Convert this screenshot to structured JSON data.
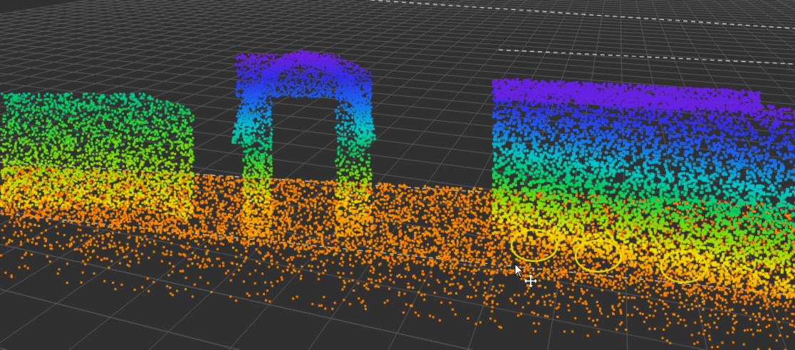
{
  "viewer": {
    "background_color": "#303030",
    "grid_color": "#5a5a5a",
    "dashed_line_color": "#e8e8e8",
    "colormap": [
      "#ff5a00",
      "#ff9a00",
      "#f0e000",
      "#7de000",
      "#00d060",
      "#00c8d0",
      "#1a6af0",
      "#3030e8",
      "#7020e0"
    ],
    "objects": [
      "ground",
      "vegetation",
      "ring-structure",
      "truck"
    ]
  },
  "cursor": {
    "pointer_icon": "arrow-cursor-icon",
    "move_icon": "move-cross-icon"
  }
}
